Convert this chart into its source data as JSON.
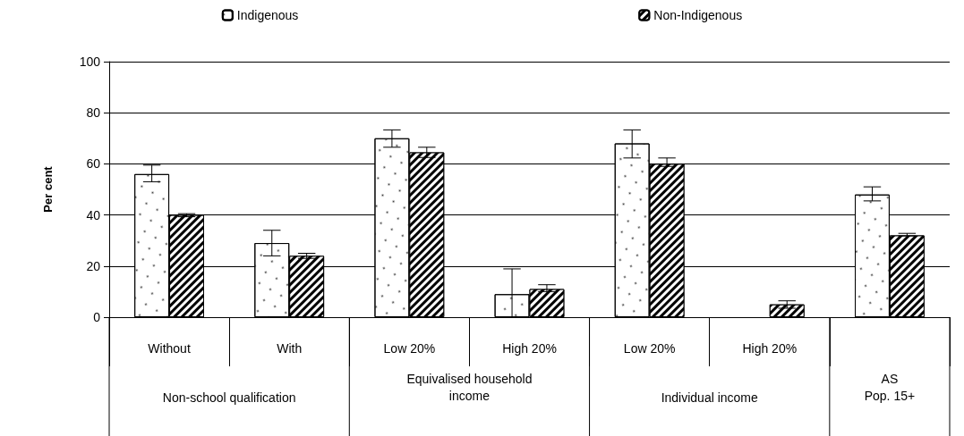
{
  "chart_data": {
    "type": "bar",
    "ylabel": "Per cent",
    "categories": [
      "Without",
      "With",
      "Low 20%",
      "High 20%",
      "Low 20%",
      "High 20%",
      null
    ],
    "annotations": [
      "Non-school qualification",
      "Equivalised household\nincome",
      "Individual income",
      "AS\nPop. 15+"
    ],
    "series": [
      {
        "name": "Indigenous",
        "color": "#ffffff",
        "values": [
          56,
          29,
          70,
          9,
          68,
          null,
          48
        ],
        "errors": [
          [
            53,
            59.5
          ],
          [
            24,
            34
          ],
          [
            66.5,
            73.3
          ],
          [
            0,
            18.9
          ],
          [
            62.3,
            73.3
          ],
          null,
          [
            45.5,
            51
          ]
        ]
      },
      {
        "name": "Non-Indigenous",
        "color": "#000000",
        "values": [
          40,
          24,
          64.5,
          11,
          60,
          5,
          32
        ],
        "errors": [
          [
            39.3,
            40.5
          ],
          [
            23,
            25
          ],
          [
            62.5,
            66.5
          ],
          [
            10,
            12.7
          ],
          [
            59,
            62.3
          ],
          [
            3.5,
            6.4
          ],
          [
            31.8,
            32.8
          ]
        ]
      }
    ],
    "ylim": [
      0,
      100
    ],
    "yticks": [
      0,
      20,
      40,
      60,
      80,
      100
    ],
    "grid": "y",
    "legend": "top"
  }
}
